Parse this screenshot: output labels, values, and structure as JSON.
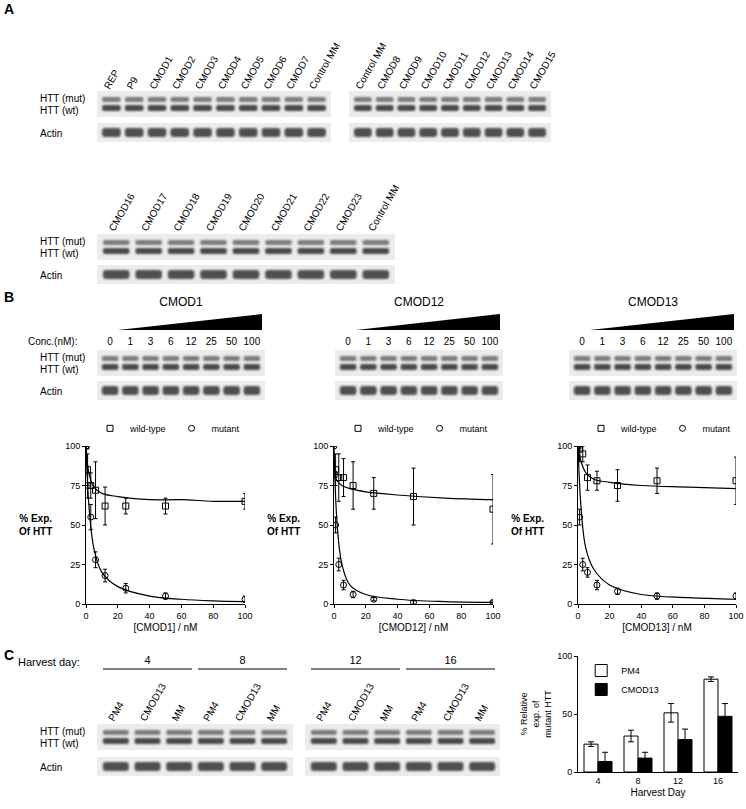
{
  "panel_labels": [
    "A",
    "B",
    "C"
  ],
  "blots": {
    "row_labels": [
      "HTT (mut)",
      "HTT (wt)",
      "Actin"
    ],
    "panel_A": [
      {
        "lanes": [
          "REP",
          "P9",
          "CMOD1",
          "CMOD2",
          "CMOD3",
          "CMOD4",
          "CMOD5",
          "CMOD6",
          "CMOD7",
          "Control MM"
        ]
      },
      {
        "lanes": [
          "Control MM",
          "CMOD8",
          "CMOD9",
          "CMOD10",
          "CMOD11",
          "CMOD12",
          "CMOD13",
          "CMOD14",
          "CMOD15"
        ]
      },
      {
        "lanes": [
          "CMOD16",
          "CMOD17",
          "CMOD18",
          "CMOD19",
          "CMOD20",
          "CMOD21",
          "CMOD22",
          "CMOD23",
          "Control MM"
        ]
      }
    ],
    "panel_B": {
      "conc_label": "Conc.(nM):",
      "concentrations": [
        "0",
        "1",
        "3",
        "6",
        "12",
        "25",
        "50",
        "100"
      ],
      "titles": [
        "CMOD1",
        "CMOD12",
        "CMOD13"
      ]
    },
    "panel_C": {
      "header": "Harvest day:",
      "days": [
        "4",
        "8",
        "12",
        "16"
      ],
      "lanes": [
        "PM4",
        "CMOD13",
        "MM"
      ]
    }
  },
  "chart_data": [
    {
      "type": "scatter",
      "xlabel": "[CMOD1] / nM",
      "ylabel": [
        "% Exp.",
        "Of HTT"
      ],
      "xlim": [
        0,
        100
      ],
      "xticks": [
        0,
        20,
        40,
        60,
        80,
        100
      ],
      "ylim": [
        0,
        100
      ],
      "yticks": [
        0,
        25,
        50,
        75,
        100
      ],
      "grid": false,
      "legend": "upper right",
      "x": [
        0,
        1,
        3,
        6,
        12,
        25,
        50,
        100
      ],
      "series": [
        {
          "name": "wild-type",
          "color": "#000000",
          "marker": "square-open",
          "values": [
            100,
            85,
            75,
            72,
            62,
            62,
            62,
            65
          ],
          "errors": [
            0,
            10,
            8,
            18,
            12,
            5,
            5,
            5
          ],
          "fit": {
            "x": [
              0,
              2,
              5,
              10,
              20,
              40,
              60,
              80,
              100
            ],
            "values": [
              100,
              82,
              74,
              70,
              68,
              66,
              66,
              65,
              65
            ]
          }
        },
        {
          "name": "mutant",
          "color": "#000000",
          "marker": "circle-open",
          "values": [
            100,
            75,
            55,
            28,
            18,
            10,
            5,
            3
          ],
          "errors": [
            0,
            8,
            8,
            5,
            4,
            3,
            2,
            2
          ],
          "fit": {
            "x": [
              0,
              2,
              5,
              10,
              20,
              40,
              60,
              80,
              100
            ],
            "values": [
              100,
              60,
              35,
              20,
              11,
              5,
              3,
              2,
              1.5
            ]
          }
        }
      ]
    },
    {
      "type": "scatter",
      "xlabel": "[CMOD12] / nM",
      "ylabel": [
        "% Exp.",
        "Of HTT"
      ],
      "xlim": [
        0,
        100
      ],
      "xticks": [
        0,
        20,
        40,
        60,
        80,
        100
      ],
      "ylim": [
        0,
        100
      ],
      "yticks": [
        0,
        25,
        50,
        75,
        100
      ],
      "grid": false,
      "legend": "upper right",
      "x": [
        0,
        1,
        3,
        6,
        12,
        25,
        50,
        100
      ],
      "series": [
        {
          "name": "wild-type",
          "color": "#000000",
          "marker": "square-open",
          "values": [
            82,
            85,
            80,
            80,
            75,
            70,
            68,
            60
          ],
          "errors": [
            0,
            10,
            15,
            12,
            15,
            10,
            18,
            22
          ],
          "fit": {
            "x": [
              0,
              2,
              5,
              10,
              20,
              40,
              70,
              100
            ],
            "values": [
              82,
              78,
              75,
              73,
              71,
              69,
              67,
              66
            ]
          }
        },
        {
          "name": "mutant",
          "color": "#000000",
          "marker": "circle-open",
          "values": [
            100,
            50,
            25,
            12,
            6,
            3,
            1,
            1
          ],
          "errors": [
            0,
            5,
            4,
            3,
            2,
            1,
            1,
            1
          ],
          "fit": {
            "x": [
              0,
              2,
              5,
              10,
              20,
              40,
              70,
              100
            ],
            "values": [
              100,
              50,
              25,
              12,
              6,
              3,
              1.5,
              1
            ]
          }
        }
      ]
    },
    {
      "type": "scatter",
      "xlabel": "[CMOD13] / nM",
      "ylabel": [
        "% Exp.",
        "Of HTT"
      ],
      "xlim": [
        0,
        100
      ],
      "xticks": [
        0,
        20,
        40,
        60,
        80,
        100
      ],
      "ylim": [
        0,
        100
      ],
      "yticks": [
        0,
        25,
        50,
        75,
        100
      ],
      "grid": false,
      "legend": "upper right",
      "x": [
        0,
        1,
        3,
        6,
        12,
        25,
        50,
        100
      ],
      "series": [
        {
          "name": "wild-type",
          "color": "#000000",
          "marker": "square-open",
          "values": [
            100,
            98,
            95,
            80,
            78,
            75,
            78,
            78
          ],
          "errors": [
            0,
            8,
            5,
            8,
            6,
            10,
            8,
            15
          ],
          "fit": {
            "x": [
              0,
              2,
              5,
              10,
              20,
              40,
              70,
              100
            ],
            "values": [
              100,
              90,
              83,
              79,
              77,
              75,
              74,
              73
            ]
          }
        },
        {
          "name": "mutant",
          "color": "#000000",
          "marker": "circle-open",
          "values": [
            100,
            55,
            25,
            20,
            12,
            8,
            5,
            5
          ],
          "errors": [
            0,
            5,
            4,
            3,
            3,
            2,
            2,
            2
          ],
          "fit": {
            "x": [
              0,
              2,
              5,
              10,
              20,
              40,
              70,
              100
            ],
            "values": [
              100,
              60,
              35,
              22,
              12,
              6,
              4,
              3
            ]
          }
        }
      ]
    },
    {
      "type": "bar",
      "xlabel": "Harvest Day",
      "ylabel": [
        "% Relative",
        "exp. of",
        "mutant HTT"
      ],
      "categories": [
        "4",
        "8",
        "12",
        "16"
      ],
      "ylim": [
        0,
        100
      ],
      "yticks": [
        0,
        50,
        100
      ],
      "grid": false,
      "legend": "upper left",
      "series": [
        {
          "name": "PM4",
          "color": "#ffffff",
          "values": [
            24,
            31,
            51,
            80
          ],
          "errors": [
            2,
            5,
            8,
            2
          ]
        },
        {
          "name": "CMOD13",
          "color": "#000000",
          "values": [
            9,
            12,
            28,
            48
          ],
          "errors": [
            8,
            5,
            9,
            11
          ]
        }
      ]
    }
  ]
}
